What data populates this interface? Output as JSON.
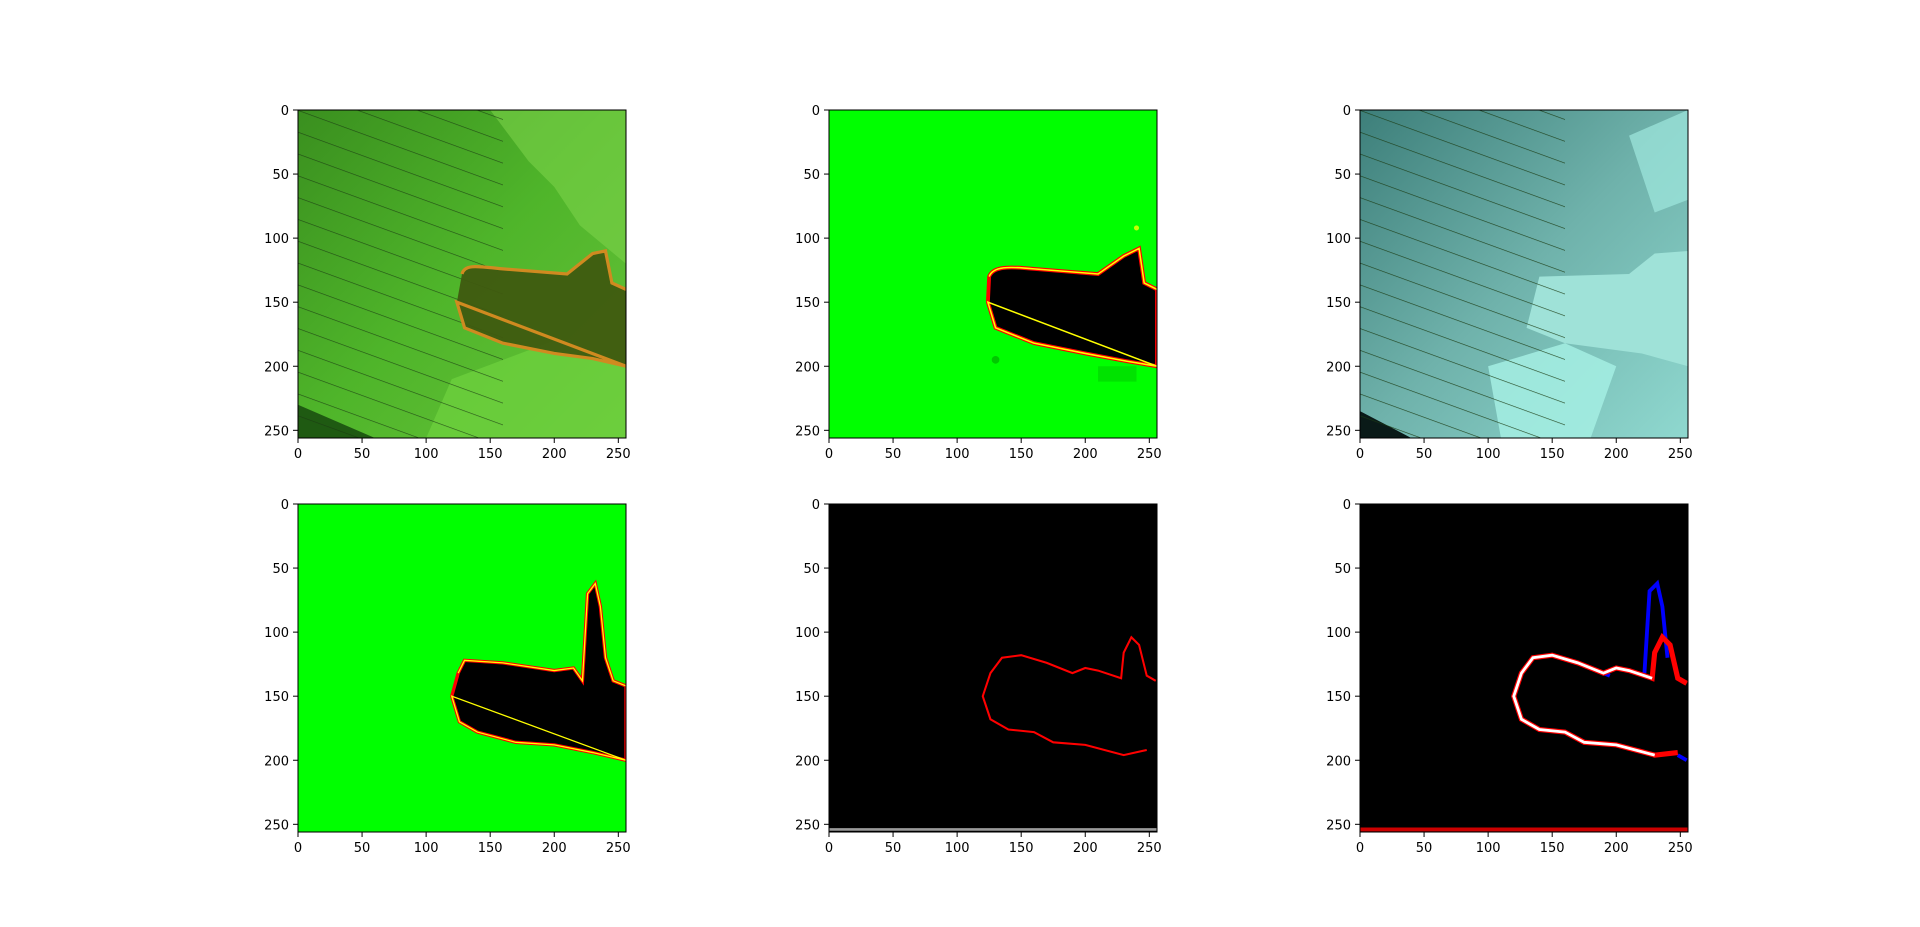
{
  "figure": {
    "panels": [
      {
        "id": "p1",
        "name": "image-panel-1-1",
        "content": "rgb-green-overlay"
      },
      {
        "id": "p2",
        "name": "image-panel-1-2",
        "content": "prediction-heatmap"
      },
      {
        "id": "p3",
        "name": "image-panel-1-3",
        "content": "rgb-cyan-tint"
      },
      {
        "id": "p4",
        "name": "image-panel-2-1",
        "content": "ground-truth-heatmap"
      },
      {
        "id": "p5",
        "name": "image-panel-2-2",
        "content": "predicted-front-line"
      },
      {
        "id": "p6",
        "name": "image-panel-2-3",
        "content": "front-comparison"
      }
    ],
    "axes": {
      "xticks": [
        "0",
        "50",
        "100",
        "150",
        "200",
        "250"
      ],
      "yticks": [
        "0",
        "50",
        "100",
        "150",
        "200",
        "250"
      ],
      "range": [
        0,
        256
      ]
    },
    "colors": {
      "green": "#00ff00",
      "black": "#000000",
      "red": "#ff0000",
      "blue": "#0000ff",
      "white": "#ffffff",
      "yellow": "#ffff00",
      "cyan": "#7ee0d8"
    }
  }
}
